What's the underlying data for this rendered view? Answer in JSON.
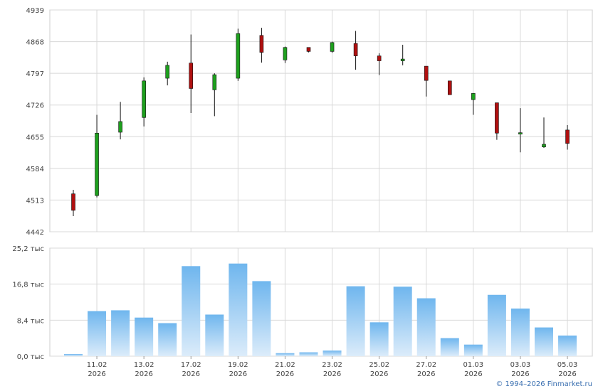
{
  "copyright": "© 1994–2026 Finmarket.ru",
  "colors": {
    "up": "#1ea01e",
    "down": "#b01010",
    "volume_top": "#6fb6ee",
    "volume_bottom": "#dcecfa",
    "grid": "#d8d8d8"
  },
  "chart_data": [
    {
      "type": "candlestick",
      "yticks": [
        "4939",
        "4868",
        "4797",
        "4726",
        "4655",
        "4584",
        "4513",
        "4442"
      ],
      "ylim": [
        4442,
        4939
      ],
      "grid": true,
      "x_labels": [
        {
          "day": "11.02",
          "year": "2026"
        },
        {
          "day": "13.02",
          "year": "2026"
        },
        {
          "day": "17.02",
          "year": "2026"
        },
        {
          "day": "19.02",
          "year": "2026"
        },
        {
          "day": "21.02",
          "year": "2026"
        },
        {
          "day": "23.02",
          "year": "2026"
        },
        {
          "day": "25.02",
          "year": "2026"
        },
        {
          "day": "27.02",
          "year": "2026"
        },
        {
          "day": "01.03",
          "year": "2026"
        },
        {
          "day": "03.03",
          "year": "2026"
        },
        {
          "day": "05.03",
          "year": "2026"
        }
      ],
      "candles": [
        {
          "open": 4527,
          "high": 4536,
          "low": 4477,
          "close": 4490
        },
        {
          "open": 4523,
          "high": 4704,
          "low": 4519,
          "close": 4663
        },
        {
          "open": 4665,
          "high": 4733,
          "low": 4649,
          "close": 4689
        },
        {
          "open": 4698,
          "high": 4788,
          "low": 4678,
          "close": 4780
        },
        {
          "open": 4786,
          "high": 4823,
          "low": 4770,
          "close": 4815
        },
        {
          "open": 4820,
          "high": 4884,
          "low": 4708,
          "close": 4763
        },
        {
          "open": 4760,
          "high": 4797,
          "low": 4701,
          "close": 4794
        },
        {
          "open": 4786,
          "high": 4897,
          "low": 4780,
          "close": 4886
        },
        {
          "open": 4882,
          "high": 4899,
          "low": 4821,
          "close": 4844
        },
        {
          "open": 4827,
          "high": 4857,
          "low": 4820,
          "close": 4855
        },
        {
          "open": 4855,
          "high": 4855,
          "low": 4844,
          "close": 4846
        },
        {
          "open": 4846,
          "high": 4868,
          "low": 4843,
          "close": 4866
        },
        {
          "open": 4864,
          "high": 4892,
          "low": 4805,
          "close": 4836
        },
        {
          "open": 4836,
          "high": 4842,
          "low": 4793,
          "close": 4825
        },
        {
          "open": 4825,
          "high": 4861,
          "low": 4815,
          "close": 4829
        },
        {
          "open": 4813,
          "high": 4813,
          "low": 4745,
          "close": 4781
        },
        {
          "open": 4780,
          "high": 4780,
          "low": 4749,
          "close": 4749
        },
        {
          "open": 4738,
          "high": 4753,
          "low": 4704,
          "close": 4752
        },
        {
          "open": 4731,
          "high": 4731,
          "low": 4648,
          "close": 4663
        },
        {
          "open": 4662,
          "high": 4719,
          "low": 4620,
          "close": 4664
        },
        {
          "open": 4632,
          "high": 4698,
          "low": 4630,
          "close": 4638
        },
        {
          "open": 4670,
          "high": 4681,
          "low": 4626,
          "close": 4640
        }
      ]
    },
    {
      "type": "bar",
      "series_label": "volume",
      "yticks": [
        "25,2 тыс",
        "16,8 тыс",
        "8,4 тыс",
        "0,0 тыс"
      ],
      "ylim": [
        0,
        25.2
      ],
      "unit": "тыс",
      "values": [
        0.5,
        10.5,
        10.7,
        9.0,
        7.7,
        21.0,
        9.7,
        21.6,
        17.5,
        0.7,
        0.9,
        1.3,
        16.3,
        7.9,
        16.2,
        13.5,
        4.2,
        2.7,
        14.3,
        11.1,
        6.7,
        4.8
      ]
    }
  ]
}
